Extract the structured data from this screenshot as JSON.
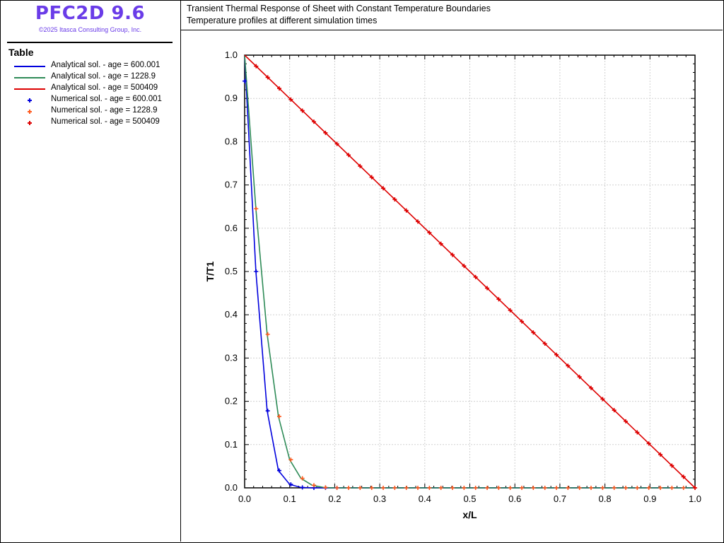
{
  "app": {
    "title": "PFC2D 9.6",
    "copyright": "©2025 Itasca Consulting Group, Inc."
  },
  "legend": {
    "title": "Table",
    "items": [
      {
        "label": "Analytical sol. - age = 600.001",
        "kind": "line",
        "color": "#0000dd"
      },
      {
        "label": "Analytical sol. - age = 1228.9",
        "kind": "line",
        "color": "#2e8b57"
      },
      {
        "label": "Analytical sol. - age = 500409",
        "kind": "line",
        "color": "#dd0000"
      },
      {
        "label": "Numerical sol. - age = 600.001",
        "kind": "marker",
        "color": "#0000dd"
      },
      {
        "label": "Numerical sol. - age = 1228.9",
        "kind": "marker",
        "color": "#ff5a1e"
      },
      {
        "label": "Numerical sol. - age = 500409",
        "kind": "marker",
        "color": "#dd0000"
      }
    ]
  },
  "header": {
    "line1": "Transient Thermal Response of Sheet with Constant Temperature Boundaries",
    "line2": "Temperature profiles at different simulation times"
  },
  "chart_data": {
    "type": "line",
    "xlabel": "x/L",
    "ylabel": "T/T1",
    "xlim": [
      0,
      1
    ],
    "ylim": [
      0,
      1
    ],
    "xticks": [
      "0.0",
      "0.1",
      "0.2",
      "0.3",
      "0.4",
      "0.5",
      "0.6",
      "0.7",
      "0.8",
      "0.9",
      "1.0"
    ],
    "yticks": [
      "0.0",
      "0.1",
      "0.2",
      "0.3",
      "0.4",
      "0.5",
      "0.6",
      "0.7",
      "0.8",
      "0.9",
      "1.0"
    ],
    "grid": true,
    "series": [
      {
        "name": "Analytical sol. - age = 600.001",
        "style": "line",
        "color": "#0000dd",
        "x": [
          0,
          0.025,
          0.05,
          0.075,
          0.1,
          0.125,
          0.15,
          0.175,
          0.2,
          1.0
        ],
        "y": [
          1.0,
          0.5,
          0.178,
          0.04,
          0.008,
          0.001,
          0.0,
          0.0,
          0.0,
          0.0
        ]
      },
      {
        "name": "Analytical sol. - age = 1228.9",
        "style": "line",
        "color": "#2e8b57",
        "x": [
          0,
          0.025,
          0.05,
          0.075,
          0.1,
          0.125,
          0.15,
          0.175,
          0.2,
          1.0
        ],
        "y": [
          1.0,
          0.645,
          0.355,
          0.165,
          0.065,
          0.022,
          0.006,
          0.001,
          0.0,
          0.0
        ]
      },
      {
        "name": "Analytical sol. - age = 500409",
        "style": "line",
        "color": "#dd0000",
        "x": [
          0,
          1.0
        ],
        "y": [
          1.0,
          0.0
        ]
      },
      {
        "name": "Numerical sol. - age = 600.001",
        "style": "marker",
        "color": "#0000dd",
        "x": [
          0,
          0.0256,
          0.0513,
          0.0769,
          0.1026,
          0.1282,
          0.1538,
          0.1795,
          0.2051
        ],
        "y": [
          0.94,
          0.5,
          0.178,
          0.04,
          0.008,
          0.001,
          0.0,
          0.0,
          0.0
        ]
      },
      {
        "name": "Numerical sol. - age = 1228.9",
        "style": "marker",
        "color": "#ff5a1e",
        "x": [
          0.0256,
          0.0513,
          0.0769,
          0.1026,
          0.1282,
          0.1538,
          0.1795,
          0.2051,
          0.2308,
          0.2564,
          0.2821,
          0.3077,
          0.3333,
          0.359,
          0.3846,
          0.4103,
          0.4359,
          0.4615,
          0.4872,
          0.5128,
          0.5385,
          0.5641,
          0.5897,
          0.6154,
          0.641,
          0.6667,
          0.6923,
          0.7179,
          0.7436,
          0.7692,
          0.7949,
          0.8205,
          0.8462,
          0.8718,
          0.8974,
          0.9231,
          0.9487,
          0.9744,
          1.0
        ],
        "y": [
          0.645,
          0.355,
          0.165,
          0.065,
          0.022,
          0.006,
          0.001,
          0.0,
          0.0,
          0.0,
          0.0,
          0.0,
          0.0,
          0.0,
          0.0,
          0.0,
          0.0,
          0.0,
          0.0,
          0.0,
          0.0,
          0.0,
          0.0,
          0.0,
          0.0,
          0.0,
          0.0,
          0.0,
          0.0,
          0.0,
          0.0,
          0.0,
          0.0,
          0.0,
          0.0,
          0.0,
          0.0,
          0.0,
          0.0
        ]
      },
      {
        "name": "Numerical sol. - age = 500409",
        "style": "marker",
        "color": "#dd0000",
        "x": [
          0.0256,
          0.0513,
          0.0769,
          0.1026,
          0.1282,
          0.1538,
          0.1795,
          0.2051,
          0.2308,
          0.2564,
          0.2821,
          0.3077,
          0.3333,
          0.359,
          0.3846,
          0.4103,
          0.4359,
          0.4615,
          0.4872,
          0.5128,
          0.5385,
          0.5641,
          0.5897,
          0.6154,
          0.641,
          0.6667,
          0.6923,
          0.7179,
          0.7436,
          0.7692,
          0.7949,
          0.8205,
          0.8462,
          0.8718,
          0.8974,
          0.9231,
          0.9487,
          0.9744,
          1.0
        ],
        "y": [
          0.9744,
          0.9487,
          0.9231,
          0.8974,
          0.8718,
          0.8462,
          0.8205,
          0.7949,
          0.7692,
          0.7436,
          0.7179,
          0.6923,
          0.6667,
          0.641,
          0.6154,
          0.5897,
          0.5641,
          0.5385,
          0.5128,
          0.4872,
          0.4615,
          0.4359,
          0.4103,
          0.3846,
          0.359,
          0.3333,
          0.3077,
          0.2821,
          0.2564,
          0.2308,
          0.2051,
          0.1795,
          0.1538,
          0.1282,
          0.1026,
          0.0769,
          0.0513,
          0.0256,
          0.0
        ]
      }
    ]
  }
}
